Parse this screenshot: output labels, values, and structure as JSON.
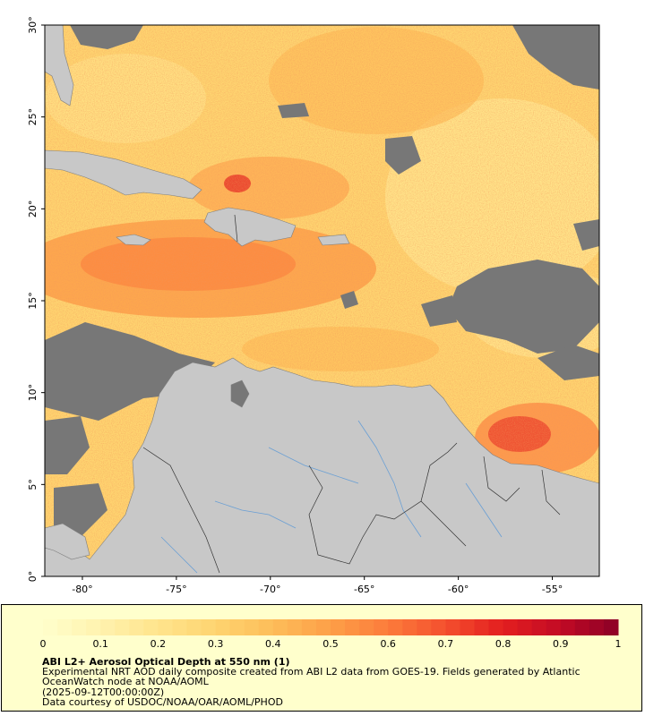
{
  "map": {
    "lat_labels": [
      "30°",
      "25°",
      "20°",
      "15°",
      "10°",
      "5°",
      "0°"
    ],
    "lon_labels": [
      "-80°",
      "-75°",
      "-70°",
      "-65°",
      "-60°",
      "-55°"
    ],
    "lat_values": [
      30,
      25,
      20,
      15,
      10,
      5,
      0
    ],
    "lon_values": [
      -80,
      -75,
      -70,
      -65,
      -60,
      -55
    ],
    "extent": {
      "lon_min": -82,
      "lon_max": -52.5,
      "lat_min": 0,
      "lat_max": 30
    }
  },
  "colorbar": {
    "tick_labels": [
      "0",
      "0.1",
      "0.2",
      "0.3",
      "0.4",
      "0.5",
      "0.6",
      "0.7",
      "0.8",
      "0.9",
      "1"
    ],
    "colors": [
      "#ffffcc",
      "#fff2ae",
      "#ffe48c",
      "#fed470",
      "#fdbd59",
      "#fd9f48",
      "#fc7b3b",
      "#f44f2e",
      "#e31e1f",
      "#c20a25",
      "#8b0026"
    ]
  },
  "info": {
    "title": "ABI L2+ Aerosol Optical Depth at 550 nm (1)",
    "description": "Experimental NRT AOD daily composite created from ABI L2 data from GOES-19. Fields generated by Atlantic OceanWatch node at NOAA/AOML",
    "timestamp": "(2025-09-12T00:00:00Z)",
    "credit": "Data courtesy of USDOC/NOAA/OAR/AOML/PHOD"
  }
}
